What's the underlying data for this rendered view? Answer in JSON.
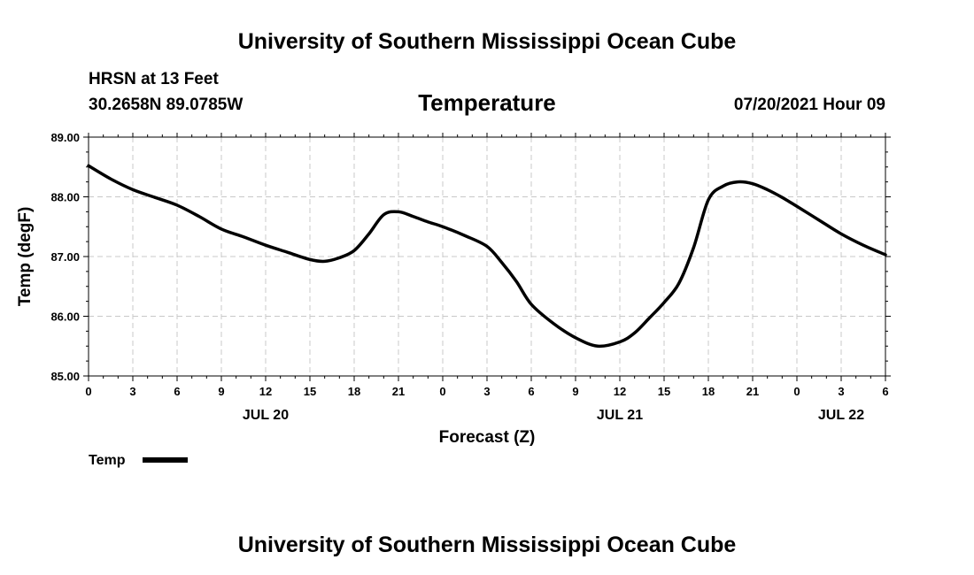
{
  "header": {
    "top_title": "University of Southern Mississippi Ocean Cube",
    "station": "HRSN at 13 Feet",
    "coords": "30.2658N  89.0785W",
    "variable": "Temperature",
    "timestamp": "07/20/2021 Hour 09",
    "bottom_title": "University of Southern Mississippi Ocean Cube"
  },
  "legend": {
    "label": "Temp",
    "color": "#000000"
  },
  "chart_data": {
    "type": "line",
    "title": "Temperature",
    "xlabel": "Forecast (Z)",
    "ylabel": "Temp (degF)",
    "ylim": [
      85.0,
      89.0
    ],
    "xlim": [
      0,
      54
    ],
    "grid": true,
    "y_ticks": [
      "85.00",
      "86.00",
      "87.00",
      "88.00",
      "89.00"
    ],
    "x_tick_labels": [
      "0",
      "3",
      "6",
      "9",
      "12",
      "15",
      "18",
      "21",
      "0",
      "3",
      "6",
      "9",
      "12",
      "15",
      "18",
      "21",
      "0",
      "3",
      "6"
    ],
    "date_labels": [
      {
        "label": "JUL 20",
        "x": 12
      },
      {
        "label": "JUL 21",
        "x": 36
      },
      {
        "label": "JUL 22",
        "x": 51
      }
    ],
    "series": [
      {
        "name": "Temp",
        "x": [
          0,
          1.5,
          3,
          4.5,
          6,
          7.5,
          9,
          10.5,
          12,
          13.5,
          15,
          16,
          17,
          18,
          19,
          20,
          21,
          22,
          23,
          24,
          25.5,
          27,
          28,
          29,
          30,
          31.5,
          33,
          34.5,
          36,
          37,
          38,
          39,
          40,
          41,
          42,
          43,
          44,
          45,
          46,
          47,
          48,
          49.5,
          51,
          52.5,
          54
        ],
        "values": [
          88.52,
          88.3,
          88.12,
          87.99,
          87.86,
          87.67,
          87.46,
          87.33,
          87.19,
          87.07,
          86.95,
          86.92,
          86.98,
          87.1,
          87.38,
          87.7,
          87.75,
          87.67,
          87.58,
          87.5,
          87.35,
          87.17,
          86.9,
          86.58,
          86.2,
          85.88,
          85.64,
          85.5,
          85.57,
          85.72,
          85.97,
          86.23,
          86.55,
          87.15,
          87.95,
          88.18,
          88.25,
          88.22,
          88.12,
          87.99,
          87.84,
          87.61,
          87.38,
          87.19,
          87.03
        ]
      }
    ]
  }
}
